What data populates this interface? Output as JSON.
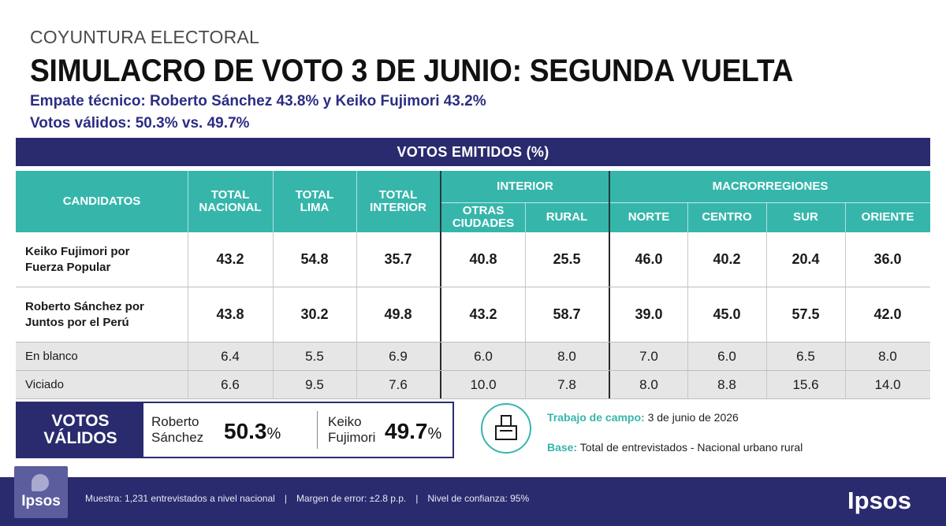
{
  "header": {
    "kicker": "COYUNTURA ELECTORAL",
    "title": "SIMULACRO DE VOTO 3 DE JUNIO: SEGUNDA VUELTA",
    "subtitle1": "Empate técnico: Roberto Sánchez 43.8% y Keiko Fujimori 43.2%",
    "subtitle2": "Votos válidos: 50.3% vs. 49.7%"
  },
  "table": {
    "banner": "VOTOS EMITIDOS (%)",
    "col_candidates": "CANDIDATOS",
    "col_total_nacional": [
      "TOTAL",
      "NACIONAL"
    ],
    "col_total_lima": [
      "TOTAL",
      "LIMA"
    ],
    "col_total_interior": [
      "TOTAL",
      "INTERIOR"
    ],
    "group_interior": "INTERIOR",
    "col_otras_ciudades": [
      "OTRAS",
      "CIUDADES"
    ],
    "col_rural": "RURAL",
    "group_macro": "MACRORREGIONES",
    "col_norte": "NORTE",
    "col_centro": "CENTRO",
    "col_sur": "SUR",
    "col_oriente": "ORIENTE",
    "rows": [
      {
        "name": [
          "Keiko Fujimori por",
          "Fuerza Popular"
        ],
        "values": [
          "43.2",
          "54.8",
          "35.7",
          "40.8",
          "25.5",
          "46.0",
          "40.2",
          "20.4",
          "36.0"
        ]
      },
      {
        "name": [
          "Roberto Sánchez por",
          "Juntos por el Perú"
        ],
        "values": [
          "43.8",
          "30.2",
          "49.8",
          "43.2",
          "58.7",
          "39.0",
          "45.0",
          "57.5",
          "42.0"
        ]
      },
      {
        "name": [
          "En blanco"
        ],
        "values": [
          "6.4",
          "5.5",
          "6.9",
          "6.0",
          "8.0",
          "7.0",
          "6.0",
          "6.5",
          "8.0"
        ]
      },
      {
        "name": [
          "Viciado"
        ],
        "values": [
          "6.6",
          "9.5",
          "7.6",
          "10.0",
          "7.8",
          "8.0",
          "8.8",
          "15.6",
          "14.0"
        ]
      }
    ]
  },
  "chart_data": {
    "type": "table",
    "columns": [
      "TOTAL NACIONAL",
      "TOTAL LIMA",
      "TOTAL INTERIOR",
      "OTRAS CIUDADES",
      "RURAL",
      "NORTE",
      "CENTRO",
      "SUR",
      "ORIENTE"
    ],
    "series": [
      {
        "name": "Keiko Fujimori por Fuerza Popular",
        "values": [
          43.2,
          54.8,
          35.7,
          40.8,
          25.5,
          46.0,
          40.2,
          20.4,
          36.0
        ]
      },
      {
        "name": "Roberto Sánchez por Juntos por el Perú",
        "values": [
          43.8,
          30.2,
          49.8,
          43.2,
          58.7,
          39.0,
          45.0,
          57.5,
          42.0
        ]
      },
      {
        "name": "En blanco",
        "values": [
          6.4,
          5.5,
          6.9,
          6.0,
          8.0,
          7.0,
          6.0,
          6.5,
          8.0
        ]
      },
      {
        "name": "Viciado",
        "values": [
          6.6,
          9.5,
          7.6,
          10.0,
          7.8,
          8.0,
          8.8,
          15.6,
          14.0
        ]
      }
    ],
    "valid_votes": [
      {
        "name": "Roberto Sánchez",
        "value": 50.3
      },
      {
        "name": "Keiko Fujimori",
        "value": 49.7
      }
    ]
  },
  "valid_votes": {
    "label": [
      "VOTOS",
      "VÁLIDOS"
    ],
    "a_name": [
      "Roberto",
      "Sánchez"
    ],
    "a_pct": "50.3",
    "b_name": [
      "Keiko",
      "Fujimori"
    ],
    "b_pct": "49.7",
    "pct_sign": "%"
  },
  "fieldwork": {
    "label": "Trabajo de campo:",
    "value": "3 de junio de 2026",
    "base_label": "Base:",
    "base_value": "Total de entrevistados - Nacional urbano rural"
  },
  "footer": {
    "logo_text": "Ipsos",
    "sample": "Muestra: 1,231 entrevistados a nivel nacional",
    "sep": "|",
    "error": "Margen de error: ±2.8 p.p.",
    "confidence": "Nivel de confianza: 95%",
    "brand": "Ipsos"
  },
  "colors": {
    "navy": "#2a2b6e",
    "teal": "#36b6ab"
  },
  "icons": {
    "ballot": "ballot-box-icon",
    "logo": "ipsos-logo"
  }
}
